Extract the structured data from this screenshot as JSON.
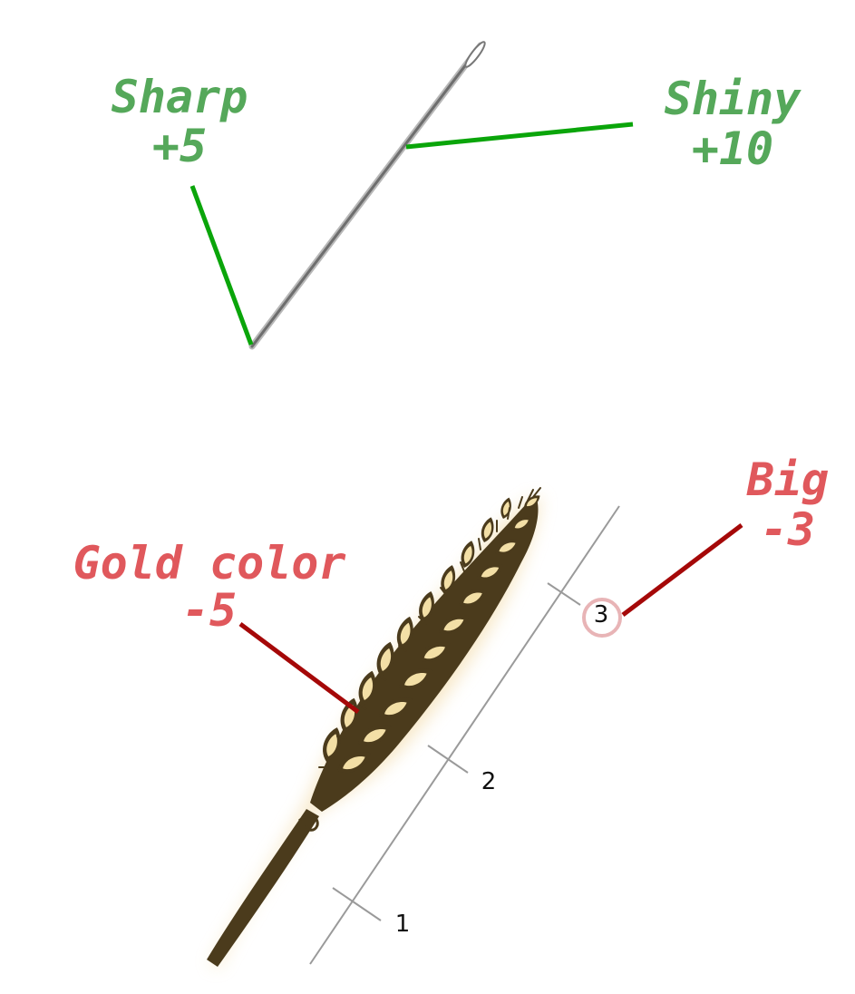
{
  "colors": {
    "positive": "#55a85a",
    "positive_line": "#0aa50a",
    "negative": "#e0585c",
    "negative_line": "#a50808",
    "ruler": "#9a9a9a",
    "wheat_dark": "#4b3b1c",
    "wheat_light": "#f3dfa6",
    "needle": "#8a8a8a",
    "highlight_circle": "#e8b4b6"
  },
  "needle": {
    "icon": "needle-icon",
    "labels": [
      {
        "name": "Sharp",
        "score": "+5"
      },
      {
        "name": "Shiny",
        "score": "+10"
      }
    ]
  },
  "wheat": {
    "icon": "wheat-icon",
    "labels": [
      {
        "name": "Gold color",
        "score": "-5"
      },
      {
        "name": "Big",
        "score": "-3"
      }
    ]
  },
  "ruler": {
    "ticks": [
      "1",
      "2",
      "3"
    ],
    "highlighted_tick": "3"
  }
}
